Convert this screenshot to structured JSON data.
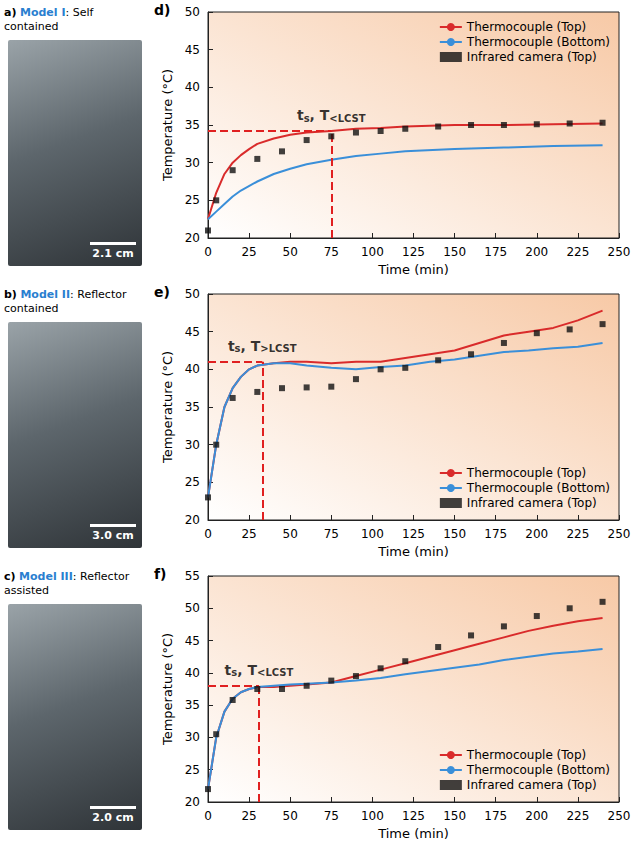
{
  "panels": [
    {
      "letter": "a)",
      "model": "Model I",
      "caption": ": Self contained",
      "scale_bar": "2.1 cm"
    },
    {
      "letter": "b)",
      "model": "Model II",
      "caption": ": Reflector contained",
      "scale_bar": "3.0 cm"
    },
    {
      "letter": "c)",
      "model": "Model III",
      "caption": ": Reflector assisted",
      "scale_bar": "2.0 cm"
    }
  ],
  "chart_data": [
    {
      "type": "line",
      "letter": "d)",
      "x_label": "Time (min)",
      "y_label": "Temperature (°C)",
      "xlim": [
        0,
        250
      ],
      "xticks": [
        0,
        25,
        50,
        75,
        100,
        125,
        150,
        175,
        200,
        225,
        250
      ],
      "ylim": [
        20,
        50
      ],
      "yticks": [
        20,
        25,
        30,
        35,
        40,
        45,
        50
      ],
      "grid": false,
      "legend": "upper right",
      "annotation": {
        "x": 75,
        "y": 34.2,
        "segments": [
          {
            "text": "t"
          },
          {
            "text": "s",
            "sub": true
          },
          {
            "text": ", T"
          },
          {
            "text": "<LCST",
            "sub": true
          }
        ]
      },
      "series": [
        {
          "name": "Thermocouple (Top)",
          "color": "#d92b2b",
          "type": "line",
          "line_style": "solid",
          "x": [
            0,
            5,
            10,
            15,
            20,
            25,
            30,
            40,
            50,
            60,
            75,
            90,
            105,
            120,
            150,
            180,
            210,
            240
          ],
          "values": [
            22.5,
            26,
            28.5,
            30,
            31,
            31.8,
            32.5,
            33.2,
            33.7,
            34,
            34.2,
            34.5,
            34.6,
            34.8,
            35,
            35,
            35.1,
            35.2
          ]
        },
        {
          "name": "Thermocouple (Bottom)",
          "color": "#3a8fd9",
          "type": "line",
          "line_style": "solid",
          "x": [
            0,
            5,
            10,
            15,
            20,
            30,
            40,
            50,
            60,
            75,
            90,
            105,
            120,
            150,
            180,
            210,
            240
          ],
          "values": [
            22.5,
            23.5,
            24.5,
            25.5,
            26.3,
            27.5,
            28.5,
            29.2,
            29.8,
            30.4,
            30.9,
            31.2,
            31.5,
            31.8,
            32,
            32.2,
            32.3
          ]
        },
        {
          "name": "Infrared camera (Top)",
          "color": "#111111",
          "type": "scatter",
          "marker": "square",
          "x": [
            0,
            5,
            15,
            30,
            45,
            60,
            75,
            90,
            105,
            120,
            140,
            160,
            180,
            200,
            220,
            240
          ],
          "values": [
            21,
            25,
            29,
            30.5,
            31.5,
            33,
            33.5,
            34,
            34.2,
            34.5,
            34.8,
            35,
            35,
            35.1,
            35.2,
            35.3
          ]
        }
      ]
    },
    {
      "type": "line",
      "letter": "e)",
      "x_label": "Time (min)",
      "y_label": "Temperature (°C)",
      "xlim": [
        0,
        250
      ],
      "xticks": [
        0,
        25,
        50,
        75,
        100,
        125,
        150,
        175,
        200,
        225,
        250
      ],
      "ylim": [
        20,
        50
      ],
      "yticks": [
        20,
        25,
        30,
        35,
        40,
        45,
        50
      ],
      "grid": false,
      "legend": "lower right",
      "annotation": {
        "x": 33,
        "y": 41,
        "segments": [
          {
            "text": "t"
          },
          {
            "text": "s",
            "sub": true
          },
          {
            "text": ", T"
          },
          {
            "text": ">LCST",
            "sub": true
          }
        ]
      },
      "series": [
        {
          "name": "Thermocouple (Top)",
          "color": "#d92b2b",
          "type": "line",
          "line_style": "solid",
          "x": [
            0,
            5,
            10,
            15,
            20,
            25,
            30,
            40,
            50,
            60,
            75,
            90,
            105,
            120,
            135,
            150,
            165,
            180,
            195,
            210,
            225,
            240
          ],
          "values": [
            23,
            30,
            35,
            37.5,
            39,
            40,
            40.5,
            40.8,
            41,
            41,
            40.8,
            41,
            41,
            41.5,
            42,
            42.5,
            43.5,
            44.5,
            45,
            45.5,
            46.5,
            47.8
          ]
        },
        {
          "name": "Thermocouple (Bottom)",
          "color": "#3a8fd9",
          "type": "line",
          "line_style": "solid",
          "x": [
            0,
            5,
            10,
            15,
            20,
            25,
            30,
            40,
            50,
            60,
            75,
            90,
            105,
            120,
            135,
            150,
            165,
            180,
            195,
            210,
            225,
            240
          ],
          "values": [
            23,
            30,
            35,
            37.5,
            39,
            40,
            40.5,
            40.8,
            40.8,
            40.5,
            40.2,
            40,
            40.3,
            40.5,
            41,
            41.3,
            41.8,
            42.3,
            42.5,
            42.8,
            43,
            43.5
          ]
        },
        {
          "name": "Infrared camera (Top)",
          "color": "#111111",
          "type": "scatter",
          "marker": "square",
          "x": [
            0,
            5,
            15,
            30,
            45,
            60,
            75,
            90,
            105,
            120,
            140,
            160,
            180,
            200,
            220,
            240
          ],
          "values": [
            23,
            30,
            36.2,
            37,
            37.5,
            37.6,
            37.7,
            38.7,
            40,
            40.2,
            41.2,
            42,
            43.5,
            44.8,
            45.3,
            46
          ]
        }
      ]
    },
    {
      "type": "line",
      "letter": "f)",
      "x_label": "Time (min)",
      "y_label": "Temperature (°C)",
      "xlim": [
        0,
        250
      ],
      "xticks": [
        0,
        25,
        50,
        75,
        100,
        125,
        150,
        175,
        200,
        225,
        250
      ],
      "ylim": [
        20,
        55
      ],
      "yticks": [
        20,
        25,
        30,
        35,
        40,
        45,
        50,
        55
      ],
      "grid": false,
      "legend": "lower right",
      "annotation": {
        "x": 31,
        "y": 38,
        "segments": [
          {
            "text": "t"
          },
          {
            "text": "s",
            "sub": true
          },
          {
            "text": ", T"
          },
          {
            "text": "<LCST",
            "sub": true
          }
        ]
      },
      "series": [
        {
          "name": "Thermocouple (Top)",
          "color": "#d92b2b",
          "type": "line",
          "line_style": "solid",
          "x": [
            0,
            5,
            10,
            15,
            20,
            25,
            30,
            40,
            50,
            60,
            75,
            90,
            105,
            120,
            135,
            150,
            165,
            180,
            195,
            210,
            225,
            240
          ],
          "values": [
            22,
            30,
            34,
            36,
            37,
            37.5,
            37.8,
            37.8,
            38,
            38.2,
            38.5,
            39.5,
            40.5,
            41.5,
            42.5,
            43.5,
            44.5,
            45.5,
            46.5,
            47.3,
            48,
            48.5
          ]
        },
        {
          "name": "Thermocouple (Bottom)",
          "color": "#3a8fd9",
          "type": "line",
          "line_style": "solid",
          "x": [
            0,
            5,
            10,
            15,
            20,
            25,
            30,
            40,
            50,
            60,
            75,
            90,
            105,
            120,
            135,
            150,
            165,
            180,
            195,
            210,
            225,
            240
          ],
          "values": [
            22,
            30,
            34,
            36,
            37,
            37.5,
            37.8,
            38,
            38.2,
            38.3,
            38.5,
            38.8,
            39.2,
            39.8,
            40.3,
            40.8,
            41.3,
            42,
            42.5,
            43,
            43.3,
            43.7
          ]
        },
        {
          "name": "Infrared camera (Top)",
          "color": "#111111",
          "type": "scatter",
          "marker": "square",
          "x": [
            0,
            5,
            15,
            30,
            45,
            60,
            75,
            90,
            105,
            120,
            140,
            160,
            180,
            200,
            220,
            240
          ],
          "values": [
            22,
            30.5,
            35.8,
            37.5,
            37.5,
            38,
            38.8,
            39.5,
            40.7,
            41.8,
            44,
            45.8,
            47.2,
            48.8,
            50,
            51
          ]
        }
      ]
    }
  ]
}
